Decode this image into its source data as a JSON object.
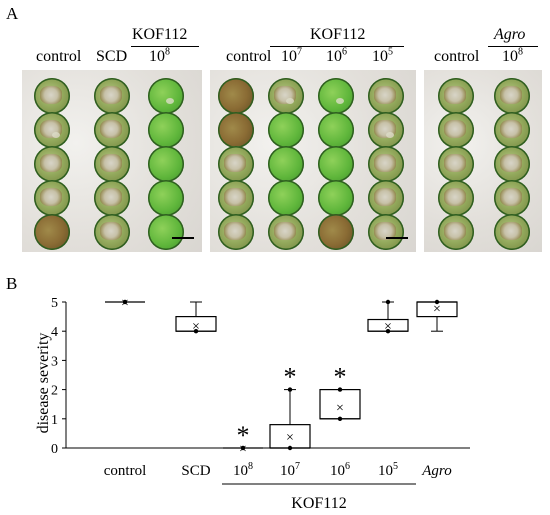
{
  "panel_a": {
    "letter": "A",
    "group_left": {
      "header": "KOF112",
      "columns": [
        {
          "label": "control"
        },
        {
          "label": "SCD"
        },
        {
          "label": "10",
          "sup": "8"
        }
      ]
    },
    "group_mid": {
      "header": "KOF112",
      "columns": [
        {
          "label": "control"
        },
        {
          "label": "10",
          "sup": "7"
        },
        {
          "label": "10",
          "sup": "6"
        },
        {
          "label": "10",
          "sup": "5"
        }
      ]
    },
    "group_right": {
      "header": "Agro",
      "columns": [
        {
          "label": "control"
        },
        {
          "label": "10",
          "sup": "8"
        }
      ]
    }
  },
  "panel_b": {
    "letter": "B"
  },
  "chart_data": {
    "type": "box",
    "ylabel": "disease severity",
    "ylim": [
      0,
      5
    ],
    "yticks": [
      0,
      1,
      2,
      3,
      4,
      5
    ],
    "categories": [
      {
        "label": "control"
      },
      {
        "label": "SCD"
      },
      {
        "label": "10",
        "sup": "8"
      },
      {
        "label": "10",
        "sup": "7"
      },
      {
        "label": "10",
        "sup": "6"
      },
      {
        "label": "10",
        "sup": "5"
      },
      {
        "label": "Agro",
        "italic": true
      }
    ],
    "group_label": "KOF112",
    "boxes": [
      {
        "min": 5,
        "q1": 5,
        "median": 5,
        "q3": 5,
        "max": 5,
        "mean": 5,
        "points": [
          5
        ],
        "star": false
      },
      {
        "min": 4,
        "q1": 4,
        "median": 4,
        "q3": 4.5,
        "max": 5,
        "mean": 4.2,
        "points": [
          4
        ],
        "star": false
      },
      {
        "min": 0,
        "q1": 0,
        "median": 0,
        "q3": 0,
        "max": 0,
        "mean": 0,
        "points": [
          0
        ],
        "star": true
      },
      {
        "min": 0,
        "q1": 0,
        "median": 0,
        "q3": 0.8,
        "max": 2,
        "mean": 0.4,
        "points": [
          0,
          2
        ],
        "star": true
      },
      {
        "min": 1,
        "q1": 1,
        "median": 1,
        "q3": 2,
        "max": 2,
        "mean": 1.4,
        "points": [
          1,
          2
        ],
        "star": true
      },
      {
        "min": 4,
        "q1": 4,
        "median": 4,
        "q3": 4.4,
        "max": 5,
        "mean": 4.2,
        "points": [
          4,
          5
        ],
        "star": false
      },
      {
        "min": 4,
        "q1": 4.5,
        "median": 5,
        "q3": 5,
        "max": 5,
        "mean": 4.8,
        "points": [
          5
        ],
        "star": false
      }
    ],
    "star_symbol": "*",
    "mean_symbol": "×"
  }
}
